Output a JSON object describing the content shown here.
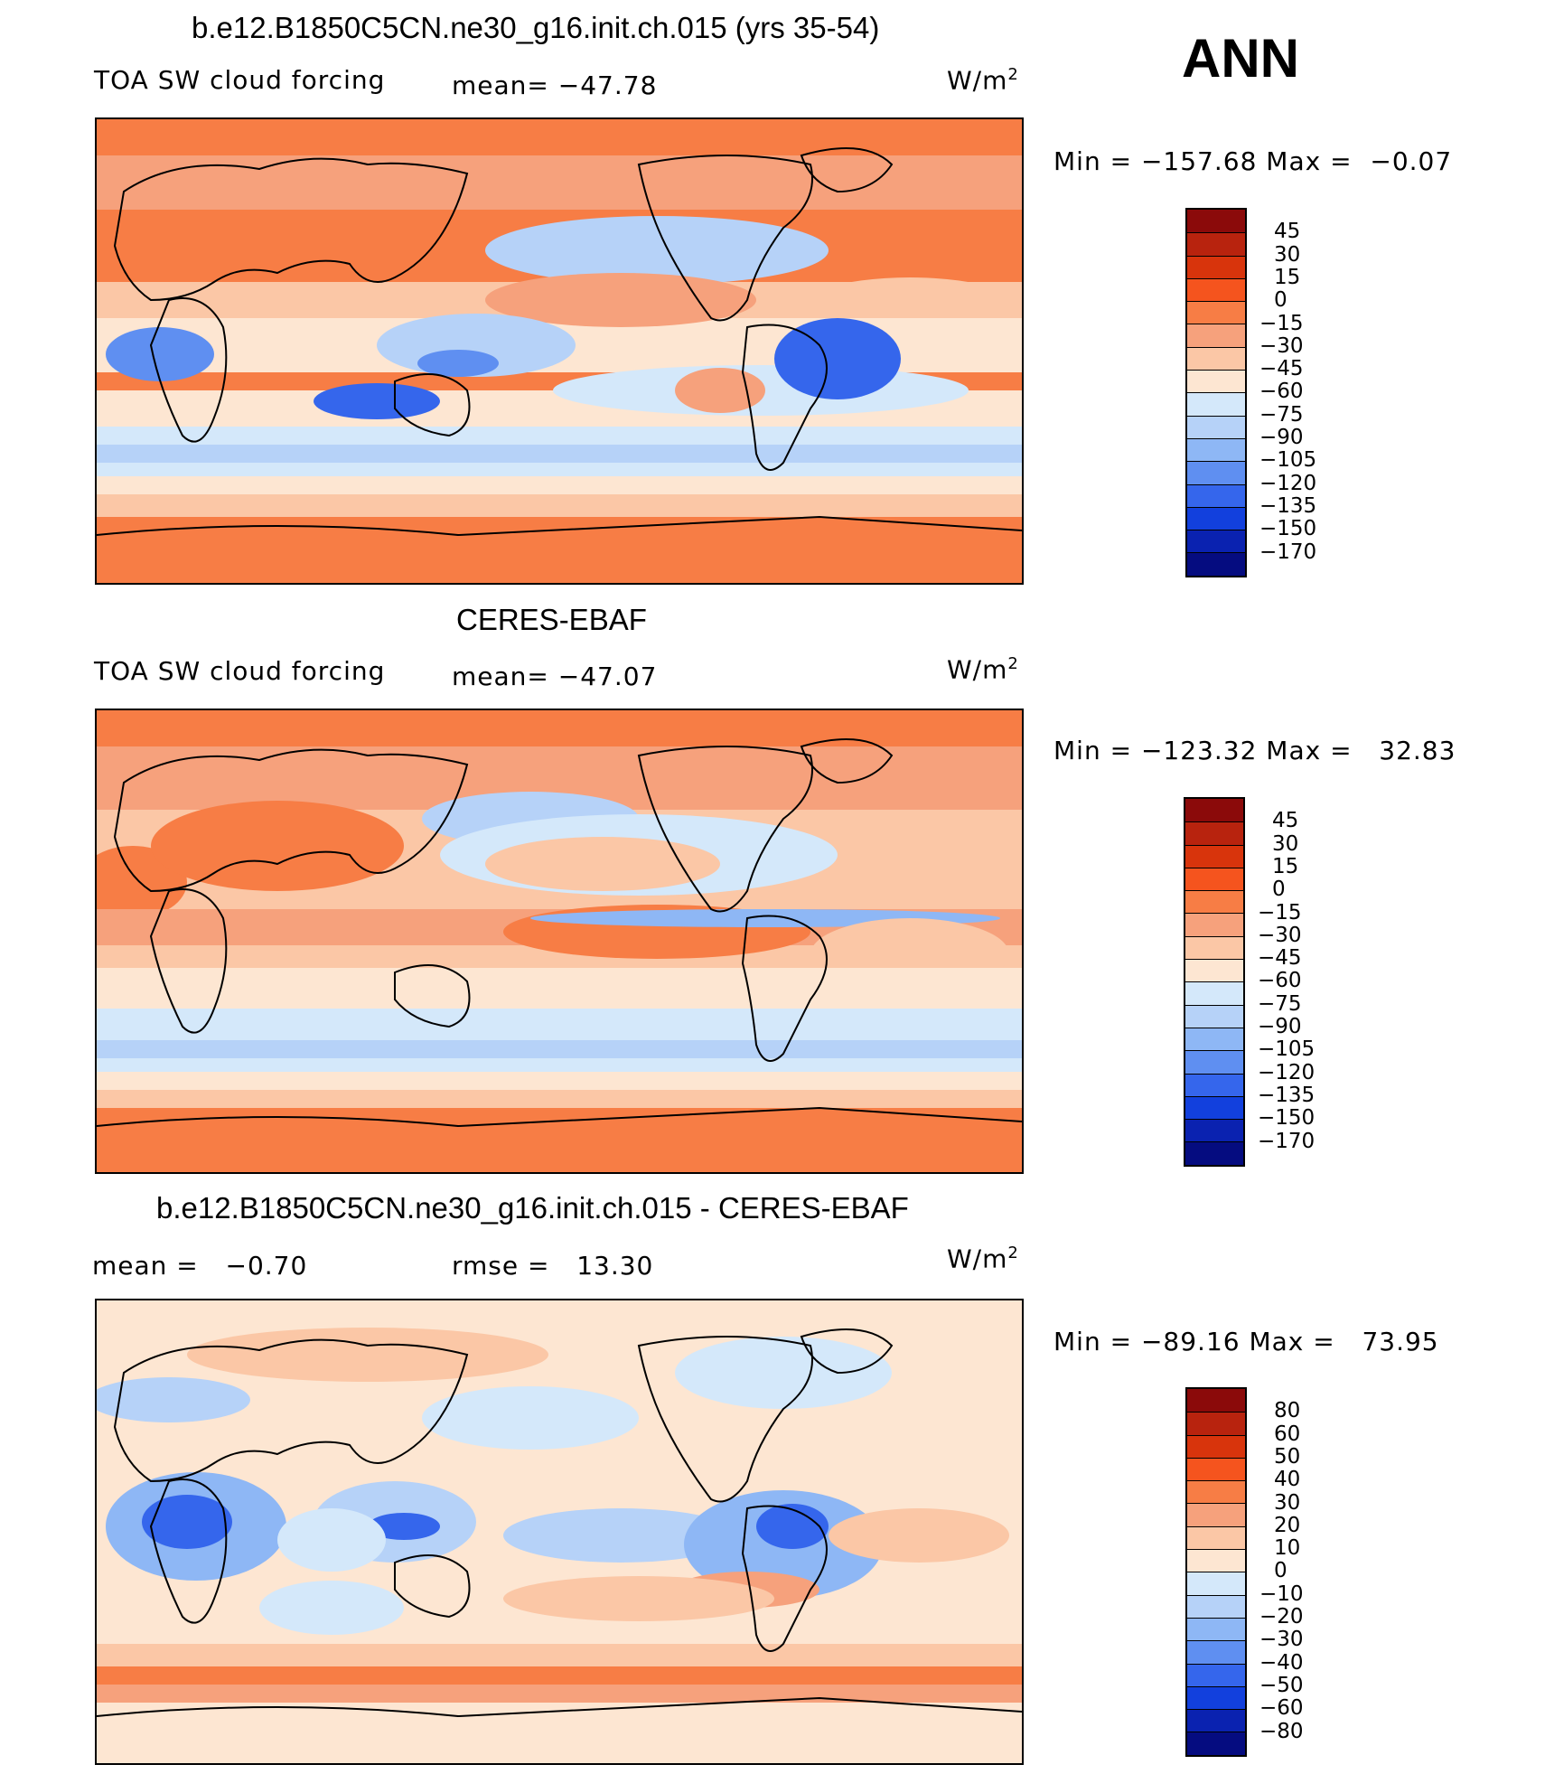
{
  "season": "ANN",
  "units_prefix": "W/m",
  "units_exp": "2",
  "panels": [
    {
      "title": "b.e12.B1850C5CN.ne30_g16.init.ch.015 (yrs 35-54)",
      "left_label": "TOA SW cloud forcing",
      "stat_label": "mean=",
      "stat_value": "−47.78",
      "min_label": "Min",
      "min_value": "−157.68",
      "max_label": "Max",
      "max_value": "−0.07",
      "colorbar": {
        "labels": [
          "45",
          "30",
          "15",
          "0",
          "−15",
          "−30",
          "−45",
          "−60",
          "−75",
          "−90",
          "−105",
          "−120",
          "−135",
          "−150",
          "−170"
        ],
        "colors": [
          "#8b0a0a",
          "#b8230e",
          "#d8340c",
          "#f5541e",
          "#f77d45",
          "#f6a17c",
          "#fbc7a6",
          "#fde6d2",
          "#d4e8fa",
          "#b6d2f8",
          "#8eb7f5",
          "#5f8ff1",
          "#3566ec",
          "#1240dd",
          "#0a22b0",
          "#050c80"
        ]
      }
    },
    {
      "title": "CERES-EBAF",
      "left_label": "TOA SW cloud forcing",
      "stat_label": "mean=",
      "stat_value": "−47.07",
      "min_label": "Min",
      "min_value": "−123.32",
      "max_label": "Max",
      "max_value": "32.83",
      "colorbar": {
        "labels": [
          "45",
          "30",
          "15",
          "0",
          "−15",
          "−30",
          "−45",
          "−60",
          "−75",
          "−90",
          "−105",
          "−120",
          "−135",
          "−150",
          "−170"
        ],
        "colors": [
          "#8b0a0a",
          "#b8230e",
          "#d8340c",
          "#f5541e",
          "#f77d45",
          "#f6a17c",
          "#fbc7a6",
          "#fde6d2",
          "#d4e8fa",
          "#b6d2f8",
          "#8eb7f5",
          "#5f8ff1",
          "#3566ec",
          "#1240dd",
          "#0a22b0",
          "#050c80"
        ]
      }
    },
    {
      "title": "b.e12.B1850C5CN.ne30_g16.init.ch.015 - CERES-EBAF",
      "left_label": "mean =",
      "left_value": "−0.70",
      "stat_label": "rmse =",
      "stat_value": "13.30",
      "min_label": "Min",
      "min_value": "−89.16",
      "max_label": "Max",
      "max_value": "73.95",
      "colorbar": {
        "labels": [
          "80",
          "60",
          "50",
          "40",
          "30",
          "20",
          "10",
          "0",
          "−10",
          "−20",
          "−30",
          "−40",
          "−50",
          "−60",
          "−80"
        ],
        "colors": [
          "#8b0a0a",
          "#b8230e",
          "#d8340c",
          "#f5541e",
          "#f77d45",
          "#f6a17c",
          "#fbc7a6",
          "#fde6d2",
          "#d4e8fa",
          "#b6d2f8",
          "#8eb7f5",
          "#5f8ff1",
          "#3566ec",
          "#1240dd",
          "#0a22b0",
          "#050c80"
        ]
      }
    }
  ]
}
